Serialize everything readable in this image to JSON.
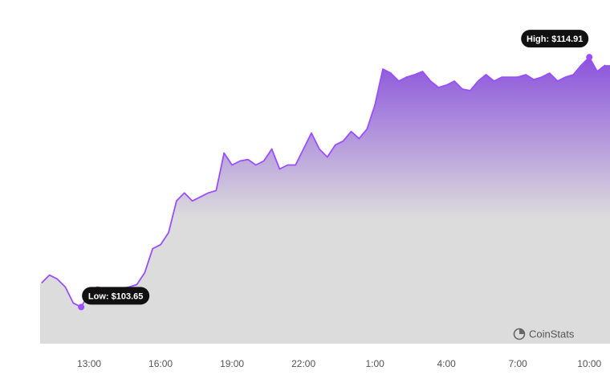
{
  "chart_data": {
    "type": "area",
    "x": [
      "11:00",
      "11:20",
      "11:40",
      "12:00",
      "12:20",
      "12:40",
      "13:00",
      "13:20",
      "13:40",
      "14:00",
      "14:20",
      "14:40",
      "15:00",
      "15:20",
      "15:40",
      "16:00",
      "16:20",
      "16:40",
      "17:00",
      "17:20",
      "17:40",
      "18:00",
      "18:20",
      "18:40",
      "19:00",
      "19:20",
      "19:40",
      "20:00",
      "20:20",
      "20:40",
      "21:00",
      "21:20",
      "21:40",
      "22:00",
      "22:20",
      "22:40",
      "23:00",
      "23:20",
      "23:40",
      "0:00",
      "0:20",
      "0:40",
      "1:00",
      "1:20",
      "1:40",
      "2:00",
      "2:20",
      "2:40",
      "3:00",
      "3:20",
      "3:40",
      "4:00",
      "4:20",
      "4:40",
      "5:00",
      "5:20",
      "5:40",
      "6:00",
      "6:20",
      "6:40",
      "7:00",
      "7:20",
      "7:40",
      "8:00",
      "8:20",
      "8:40",
      "9:00",
      "9:20",
      "9:40",
      "10:00",
      "10:20",
      "10:40"
    ],
    "values": [
      104.73,
      105.09,
      104.91,
      104.55,
      103.83,
      103.65,
      104.3,
      104.55,
      104.48,
      104.48,
      104.48,
      104.55,
      104.66,
      105.2,
      106.28,
      106.46,
      107.0,
      108.43,
      108.79,
      108.43,
      108.61,
      108.79,
      108.9,
      110.59,
      110.05,
      110.23,
      110.3,
      110.05,
      110.23,
      110.77,
      109.87,
      110.05,
      110.05,
      110.77,
      111.49,
      110.77,
      110.41,
      110.95,
      111.13,
      111.56,
      111.24,
      111.67,
      112.75,
      114.37,
      114.19,
      113.83,
      114.01,
      114.12,
      114.26,
      113.83,
      113.54,
      113.65,
      113.83,
      113.47,
      113.4,
      113.83,
      114.12,
      113.83,
      114.01,
      114.01,
      114.01,
      114.12,
      113.9,
      114.01,
      114.19,
      113.83,
      114.01,
      114.12,
      114.55,
      114.91,
      114.26,
      114.55
    ],
    "color": "#9b4dff",
    "ylim": [
      102,
      116.4
    ],
    "xticks": [
      "13:00",
      "16:00",
      "19:00",
      "22:00",
      "1:00",
      "4:00",
      "7:00",
      "10:00"
    ],
    "annotations": [
      {
        "label": "Low: $103.65",
        "x": "12:40",
        "value": 103.65
      },
      {
        "label": "High: $114.91",
        "x": "10:00",
        "value": 114.91
      }
    ],
    "watermark": "CoinStats"
  }
}
